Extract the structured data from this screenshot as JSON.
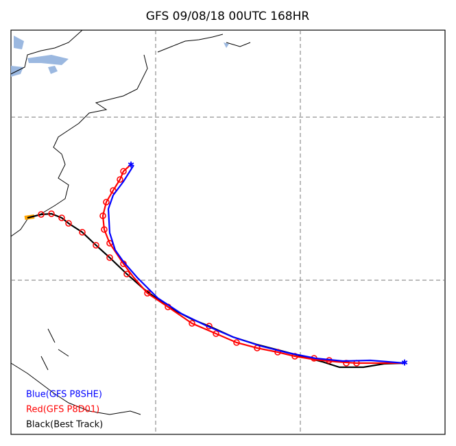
{
  "title": "GFS 09/08/18 00UTC 168HR",
  "legend": [
    {
      "label": "Blue(GFS P8SHE)",
      "color": "#0000ff"
    },
    {
      "label": "Red(GFS P8D01)",
      "color": "#ff0000"
    },
    {
      "label": "Black(Best Track)",
      "color": "#000000"
    }
  ]
}
